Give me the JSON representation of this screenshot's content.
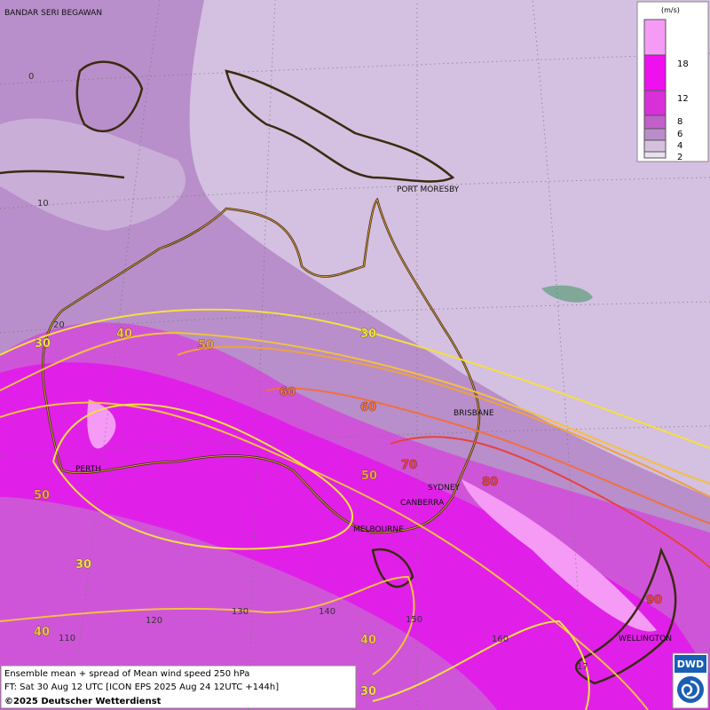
{
  "cities": [
    "BANDAR SERI BEGAWAN",
    "PORT MORESBY",
    "BRISBANE",
    "PERTH",
    "SYDNEY",
    "CANBERRA",
    "MELBOURNE",
    "WELLINGTON"
  ],
  "contour_labels": [
    30,
    40,
    50,
    30,
    60,
    60,
    70,
    50,
    80,
    50,
    30,
    40,
    40,
    30,
    90
  ],
  "grid_labels": [
    "0",
    "10",
    "20",
    "110",
    "120",
    "130",
    "140",
    "150",
    "160",
    "17"
  ],
  "legend": {
    "unit": "(m/s)",
    "levels": [
      18,
      12,
      8,
      6,
      4,
      2
    ]
  },
  "footer": [
    "Ensemble mean + spread of Mean wind speed 250 hPa",
    "FT: Sat 30 Aug 12 UTC [ICON EPS 2025 Aug 24 12UTC +144h]",
    "©2025 Deutscher Wetterdienst"
  ],
  "logo": "DWD"
}
